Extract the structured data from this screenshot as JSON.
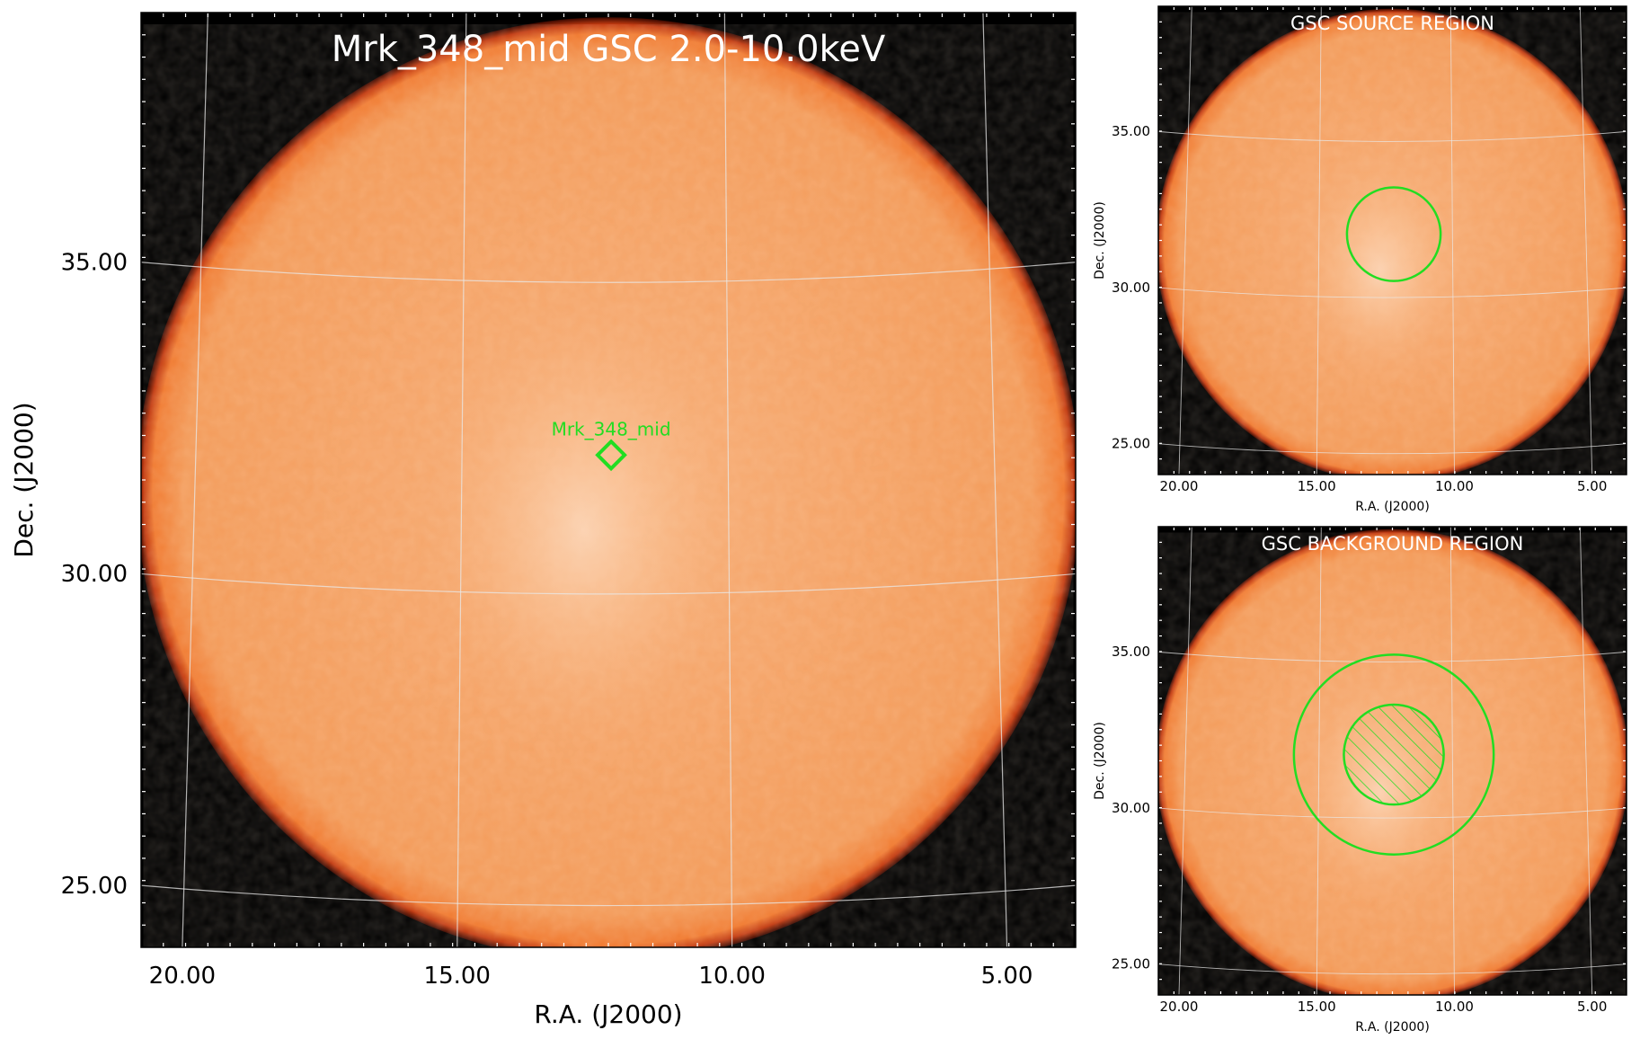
{
  "chart_data": [
    {
      "type": "heatmap",
      "title": "Mrk_348_mid GSC 2.0-10.0keV",
      "xlabel": "R.A. (J2000)",
      "ylabel": "Dec. (J2000)",
      "xlim": [
        20.75,
        3.75
      ],
      "ylim": [
        24.0,
        39.0
      ],
      "x_ticks": [
        "20.00",
        "15.00",
        "10.00",
        "5.00"
      ],
      "y_ticks": [
        "35.00",
        "30.00",
        "25.00"
      ],
      "colormap": "black-red-orange-white",
      "grid": true,
      "source": {
        "label": "Mrk_348_mid",
        "ra": 12.2,
        "dec": 31.9,
        "marker": "diamond",
        "color": "#22dd22"
      }
    },
    {
      "type": "heatmap",
      "title": "GSC SOURCE REGION",
      "xlabel": "R.A. (J2000)",
      "ylabel": "Dec. (J2000)",
      "xlim": [
        20.75,
        3.75
      ],
      "ylim": [
        24.0,
        39.0
      ],
      "x_ticks": [
        "20.00",
        "15.00",
        "10.00",
        "5.00"
      ],
      "y_ticks": [
        "35.00",
        "30.00",
        "25.00"
      ],
      "grid": true,
      "regions": [
        {
          "shape": "circle",
          "ra": 12.2,
          "dec": 31.7,
          "radius_deg": 1.5,
          "color": "#22dd22"
        }
      ]
    },
    {
      "type": "heatmap",
      "title": "GSC BACKGROUND REGION",
      "xlabel": "R.A. (J2000)",
      "ylabel": "Dec. (J2000)",
      "xlim": [
        20.75,
        3.75
      ],
      "ylim": [
        24.0,
        39.0
      ],
      "x_ticks": [
        "20.00",
        "15.00",
        "10.00",
        "5.00"
      ],
      "y_ticks": [
        "35.00",
        "30.00",
        "25.00"
      ],
      "grid": true,
      "regions": [
        {
          "shape": "annulus_outer",
          "ra": 12.2,
          "dec": 31.7,
          "radius_deg": 3.2,
          "color": "#22dd22"
        },
        {
          "shape": "excluded_circle",
          "ra": 12.2,
          "dec": 31.7,
          "radius_deg": 1.6,
          "color": "#22dd22",
          "hatched": true
        }
      ]
    }
  ]
}
